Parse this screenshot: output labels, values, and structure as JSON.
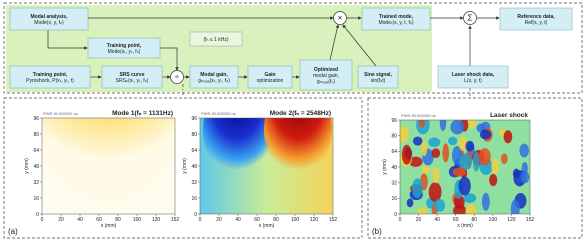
{
  "nodes": [
    {
      "lines": [
        "Modal analysis,",
        "Mode(x, y, fₙ)"
      ]
    },
    {
      "lines": [
        "Training point,",
        "Mode(xₜ, yₜ, fₙ)"
      ]
    },
    {
      "lines": [
        "(fₙ ≤ 1 kHz)"
      ]
    },
    {
      "lines": [
        "Training point,",
        "Pyroshock, P(xₜ, yₜ, t)"
      ]
    },
    {
      "lines": [
        "SRS curve",
        "SRSₚ(xₜ, yₜ, fₙ)"
      ]
    },
    {
      "lines": [
        "Modal gain,",
        "gₘₒₔₑ(xₜ, yₜ, fₙ)"
      ]
    },
    {
      "lines": [
        "Gain",
        "optimization"
      ]
    },
    {
      "lines": [
        "Optimized",
        "modal gain,",
        "gₘₒₔₑ(fₙ)"
      ]
    },
    {
      "lines": [
        "Sine signal,",
        "sin(fₙt)"
      ]
    },
    {
      "lines": [
        "Trained mode,",
        "Modeₜ(x, y, t, fₙ)"
      ]
    },
    {
      "lines": [
        "Reference data,",
        "Ref(x, y, t)"
      ]
    },
    {
      "lines": [
        "Laser shock data,",
        "L(x, y, t)"
      ]
    }
  ],
  "operators": [
    "÷",
    "×",
    "Σ"
  ],
  "plots": [
    {
      "title": "Mode 1(fₙ = 1131Hz)",
      "subtitle": "PWR 90.000000 us",
      "xlabel": "x (mm)",
      "ylabel": "y (mm)",
      "xticks": [
        "0",
        "20",
        "40",
        "60",
        "80",
        "100",
        "120",
        "152"
      ],
      "yticks": [
        "0",
        "16",
        "32",
        "48",
        "64",
        "80",
        "96"
      ]
    },
    {
      "title": "Mode 2(fₙ = 2548Hz)",
      "subtitle": "PWR 90.000000 us",
      "xlabel": "x (mm)",
      "ylabel": "y (mm)",
      "xticks": [
        "0",
        "20",
        "40",
        "60",
        "80",
        "100",
        "120",
        "152"
      ],
      "yticks": [
        "0",
        "16",
        "32",
        "48",
        "64",
        "80",
        "96"
      ]
    },
    {
      "title": "Laser shock",
      "subtitle": "PWR 90.000000 us",
      "xlabel": "x (mm)",
      "ylabel": "y (mm)",
      "xticks": [
        "0",
        "20",
        "40",
        "60",
        "80",
        "100",
        "120",
        "152"
      ],
      "yticks": [
        "0",
        "16",
        "32",
        "48",
        "64",
        "80",
        "96"
      ]
    }
  ],
  "panel_labels": [
    "(a)",
    "(b)"
  ]
}
